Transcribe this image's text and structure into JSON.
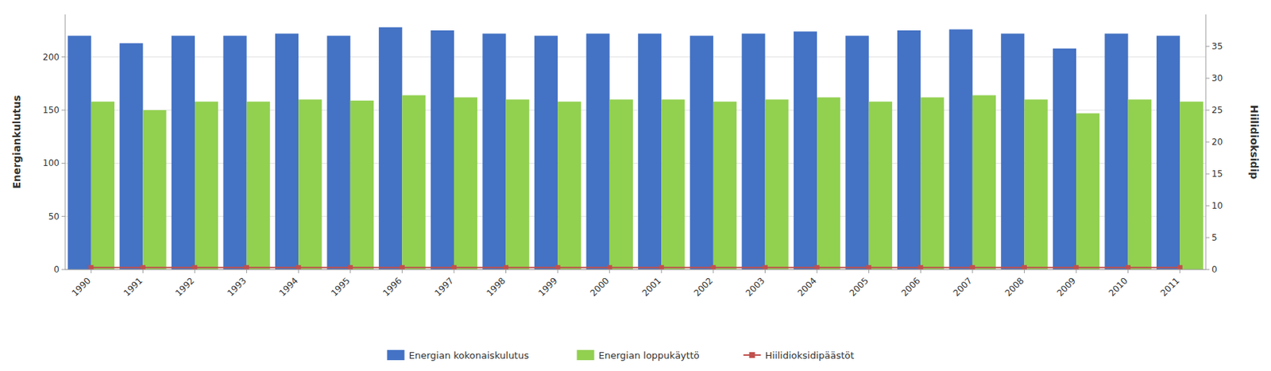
{
  "chart_data": {
    "type": "bar",
    "categories": [
      "1990",
      "1991",
      "1992",
      "1993",
      "1994",
      "1995",
      "1996",
      "1997",
      "1998",
      "1999",
      "2000",
      "2001",
      "2002",
      "2003",
      "2004",
      "2005",
      "2006",
      "2007",
      "2008",
      "2009",
      "2010",
      "2011"
    ],
    "series": [
      {
        "name": "Energian kokonaiskulutus",
        "color": "#4472C4",
        "values": [
          220,
          213,
          220,
          220,
          222,
          220,
          228,
          225,
          222,
          220,
          222,
          222,
          220,
          222,
          224,
          220,
          225,
          226,
          222,
          208,
          222,
          220
        ]
      },
      {
        "name": "Energian loppukäyttö",
        "color": "#92D050",
        "values": [
          158,
          150,
          158,
          158,
          160,
          159,
          164,
          162,
          160,
          158,
          160,
          160,
          158,
          160,
          162,
          158,
          162,
          164,
          160,
          147,
          160,
          158
        ]
      },
      {
        "name": "Hiilidioksidipäästöt",
        "type": "line",
        "axis": "y2",
        "color": "#C0504D",
        "marker": "square",
        "values": [
          0.3,
          0.3,
          0.3,
          0.3,
          0.3,
          0.3,
          0.3,
          0.3,
          0.3,
          0.3,
          0.3,
          0.3,
          0.3,
          0.3,
          0.3,
          0.3,
          0.3,
          0.3,
          0.3,
          0.3,
          0.3,
          0.3
        ]
      }
    ],
    "y_label": "Energiankulutus",
    "y2_label": "Hiilidioksidip",
    "ylim": [
      0,
      240
    ],
    "yticks": [
      0,
      50,
      100,
      150,
      200
    ],
    "y2lim": [
      0,
      40
    ],
    "y2ticks": [
      0,
      5,
      10,
      15,
      20,
      25,
      30,
      35
    ],
    "grid": true,
    "legend": "bottom"
  }
}
